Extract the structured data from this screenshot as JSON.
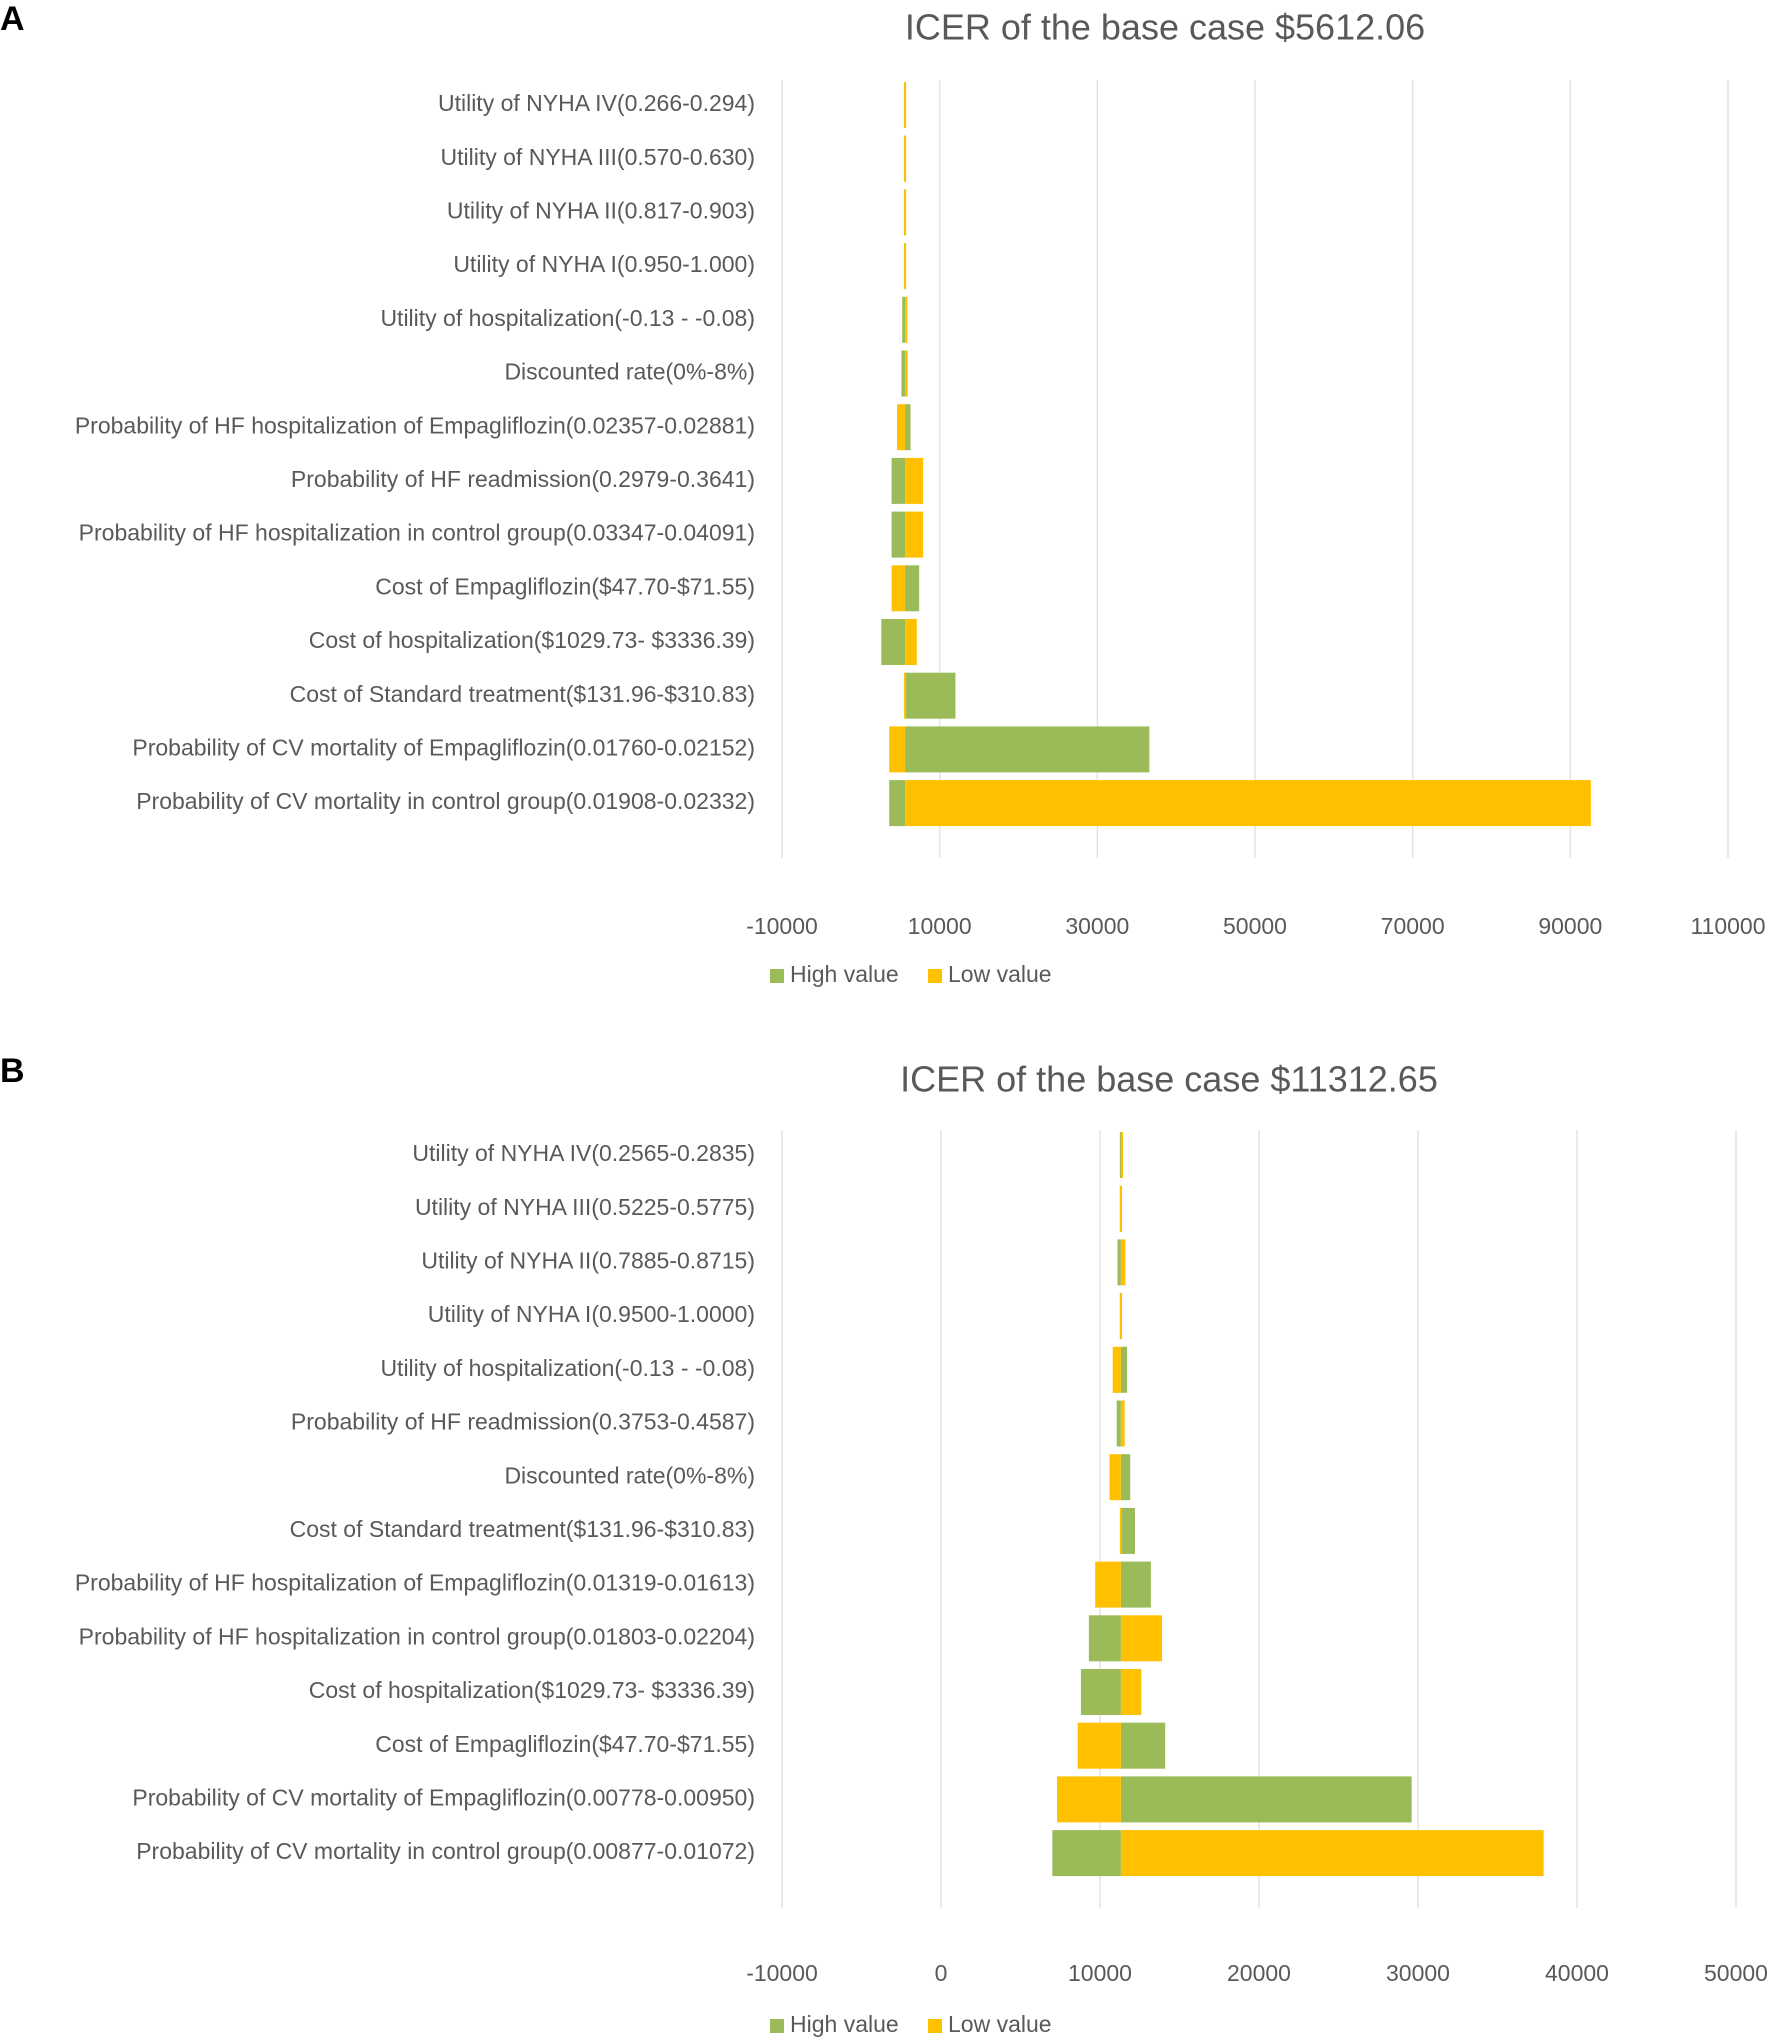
{
  "colors": {
    "high": "#9bbb59",
    "low": "#ffc000",
    "text": "#595959",
    "grid": "#e3e3e3"
  },
  "chart_data": [
    {
      "panel": "A",
      "type": "bar",
      "orientation": "horizontal-tornado",
      "title": "ICER of the base case $5612.06",
      "base": 5612.06,
      "xlim": [
        -10000,
        110000
      ],
      "xticks": [
        -10000,
        10000,
        30000,
        50000,
        70000,
        90000,
        110000
      ],
      "legend": [
        "High value",
        "Low value"
      ],
      "legend_position": "bottom",
      "categories": [
        "Utility of NYHA IV(0.266-0.294)",
        "Utility of NYHA III(0.570-0.630)",
        "Utility of NYHA II(0.817-0.903)",
        "Utility of NYHA I(0.950-1.000)",
        "Utility of hospitalization(-0.13 - -0.08)",
        "Discounted rate(0%-8%)",
        "Probability of HF hospitalization of Empagliflozin(0.02357-0.02881)",
        "Probability of HF readmission(0.2979-0.3641)",
        "Probability of HF hospitalization in control group(0.03347-0.04091)",
        "Cost of Empagliflozin($47.70-$71.55)",
        "Cost of hospitalization($1029.73- $3336.39)",
        "Cost of Standard treatment($131.96-$310.83)",
        "Probability of CV mortality of Empagliflozin(0.01760-0.02152)",
        "Probability of CV mortality in control group(0.01908-0.02332)"
      ],
      "series": [
        {
          "name": "High value",
          "values": [
            5450,
            5500,
            5550,
            5580,
            5250,
            5150,
            6300,
            3900,
            3900,
            7400,
            2600,
            12000,
            36600,
            3600
          ]
        },
        {
          "name": "Low value",
          "values": [
            5750,
            5700,
            5680,
            5650,
            5900,
            5950,
            4600,
            7900,
            7900,
            3900,
            7100,
            5612.06,
            3600,
            92600
          ]
        }
      ]
    },
    {
      "panel": "B",
      "type": "bar",
      "orientation": "horizontal-tornado",
      "title": "ICER of the base case $11312.65",
      "base": 11312.65,
      "xlim": [
        -10000,
        50000
      ],
      "xticks": [
        -10000,
        0,
        10000,
        20000,
        30000,
        40000,
        50000
      ],
      "legend": [
        "High value",
        "Low value"
      ],
      "legend_position": "bottom",
      "categories": [
        "Utility of NYHA IV(0.2565-0.2835)",
        "Utility of NYHA III(0.5225-0.5775)",
        "Utility of NYHA II(0.7885-0.8715)",
        "Utility of NYHA I(0.9500-1.0000)",
        "Utility of hospitalization(-0.13 - -0.08)",
        "Probability of HF readmission(0.3753-0.4587)",
        "Discounted rate(0%-8%)",
        "Cost of Standard treatment($131.96-$310.83)",
        "Probability of HF hospitalization of Empagliflozin(0.01319-0.01613)",
        "Probability of HF hospitalization in control group(0.01803-0.02204)",
        "Cost of hospitalization($1029.73- $3336.39)",
        "Cost of Empagliflozin($47.70-$71.55)",
        "Probability of CV mortality of Empagliflozin(0.00778-0.00950)",
        "Probability of CV mortality in control group(0.00877-0.01072)"
      ],
      "series": [
        {
          "name": "High value",
          "values": [
            11200,
            11250,
            11100,
            11280,
            11700,
            11050,
            11900,
            12200,
            13200,
            9300,
            8800,
            14100,
            29600,
            7000
          ]
        },
        {
          "name": "Low value",
          "values": [
            11450,
            11400,
            11600,
            11350,
            10800,
            11550,
            10600,
            11312.65,
            9700,
            13900,
            12600,
            8600,
            7300,
            37900
          ]
        }
      ]
    }
  ]
}
